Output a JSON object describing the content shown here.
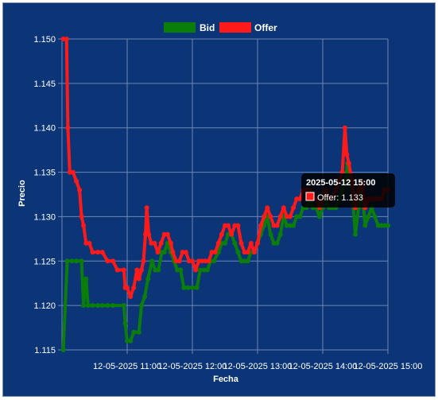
{
  "chart_data": {
    "type": "line",
    "xlabel": "Fecha",
    "ylabel": "Precio",
    "ylim": [
      1.115,
      1.15
    ],
    "y_ticks": [
      "1.115",
      "1.120",
      "1.125",
      "1.130",
      "1.135",
      "1.140",
      "1.145",
      "1.150"
    ],
    "x_tick_labels": [
      "12-05-2025 11:00",
      "12-05-2025 12:00",
      "12-05-2025 13:00",
      "12-05-2025 14:00",
      "12-05-2025 15:00"
    ],
    "x_ticks_hours": [
      11,
      12,
      13,
      14,
      15
    ],
    "x_range_hours": [
      10.0,
      15.0
    ],
    "grid": true,
    "legend_position": "top",
    "background_color": "#0b3576",
    "series": [
      {
        "name": "Bid",
        "color": "#0a7d0a",
        "points": [
          [
            10.02,
            1.115
          ],
          [
            10.08,
            1.125
          ],
          [
            10.15,
            1.125
          ],
          [
            10.22,
            1.125
          ],
          [
            10.3,
            1.125
          ],
          [
            10.33,
            1.12
          ],
          [
            10.37,
            1.123
          ],
          [
            10.4,
            1.12
          ],
          [
            10.47,
            1.12
          ],
          [
            10.55,
            1.12
          ],
          [
            10.62,
            1.12
          ],
          [
            10.7,
            1.12
          ],
          [
            10.78,
            1.12
          ],
          [
            10.95,
            1.12
          ],
          [
            10.97,
            1.118
          ],
          [
            11.0,
            1.116
          ],
          [
            11.05,
            1.116
          ],
          [
            11.1,
            1.117
          ],
          [
            11.18,
            1.117
          ],
          [
            11.22,
            1.12
          ],
          [
            11.27,
            1.121
          ],
          [
            11.32,
            1.123
          ],
          [
            11.38,
            1.125
          ],
          [
            11.43,
            1.124
          ],
          [
            11.48,
            1.124
          ],
          [
            11.53,
            1.126
          ],
          [
            11.57,
            1.126
          ],
          [
            11.62,
            1.127
          ],
          [
            11.67,
            1.126
          ],
          [
            11.72,
            1.125
          ],
          [
            11.77,
            1.124
          ],
          [
            11.82,
            1.124
          ],
          [
            11.87,
            1.122
          ],
          [
            11.93,
            1.122
          ],
          [
            12.0,
            1.122
          ],
          [
            12.07,
            1.122
          ],
          [
            12.12,
            1.124
          ],
          [
            12.18,
            1.124
          ],
          [
            12.23,
            1.124
          ],
          [
            12.28,
            1.125
          ],
          [
            12.33,
            1.125
          ],
          [
            12.4,
            1.126
          ],
          [
            12.45,
            1.127
          ],
          [
            12.5,
            1.127
          ],
          [
            12.55,
            1.128
          ],
          [
            12.6,
            1.128
          ],
          [
            12.65,
            1.127
          ],
          [
            12.7,
            1.126
          ],
          [
            12.75,
            1.125
          ],
          [
            12.8,
            1.125
          ],
          [
            12.85,
            1.125
          ],
          [
            12.9,
            1.126
          ],
          [
            12.95,
            1.126
          ],
          [
            13.0,
            1.127
          ],
          [
            13.05,
            1.128
          ],
          [
            13.1,
            1.129
          ],
          [
            13.15,
            1.13
          ],
          [
            13.2,
            1.128
          ],
          [
            13.25,
            1.127
          ],
          [
            13.3,
            1.127
          ],
          [
            13.35,
            1.128
          ],
          [
            13.4,
            1.13
          ],
          [
            13.45,
            1.129
          ],
          [
            13.5,
            1.129
          ],
          [
            13.55,
            1.129
          ],
          [
            13.6,
            1.13
          ],
          [
            13.65,
            1.13
          ],
          [
            13.7,
            1.131
          ],
          [
            13.75,
            1.131
          ],
          [
            13.8,
            1.132
          ],
          [
            13.85,
            1.131
          ],
          [
            13.9,
            1.131
          ],
          [
            13.95,
            1.13
          ],
          [
            14.0,
            1.131
          ],
          [
            14.05,
            1.132
          ],
          [
            14.1,
            1.131
          ],
          [
            14.15,
            1.131
          ],
          [
            14.2,
            1.131
          ],
          [
            14.25,
            1.132
          ],
          [
            14.3,
            1.133
          ],
          [
            14.35,
            1.134
          ],
          [
            14.38,
            1.136
          ],
          [
            14.4,
            1.135
          ],
          [
            14.45,
            1.133
          ],
          [
            14.5,
            1.128
          ],
          [
            14.55,
            1.131
          ],
          [
            14.6,
            1.133
          ],
          [
            14.65,
            1.129
          ],
          [
            14.7,
            1.13
          ],
          [
            14.75,
            1.131
          ],
          [
            14.8,
            1.13
          ],
          [
            14.85,
            1.129
          ],
          [
            14.9,
            1.129
          ],
          [
            14.95,
            1.129
          ],
          [
            15.0,
            1.129
          ]
        ]
      },
      {
        "name": "Offer",
        "color": "#ff1a1a",
        "points": [
          [
            10.02,
            1.15
          ],
          [
            10.07,
            1.15
          ],
          [
            10.09,
            1.14
          ],
          [
            10.12,
            1.135
          ],
          [
            10.17,
            1.135
          ],
          [
            10.22,
            1.134
          ],
          [
            10.27,
            1.133
          ],
          [
            10.3,
            1.13
          ],
          [
            10.33,
            1.129
          ],
          [
            10.37,
            1.127
          ],
          [
            10.42,
            1.127
          ],
          [
            10.47,
            1.126
          ],
          [
            10.55,
            1.126
          ],
          [
            10.62,
            1.126
          ],
          [
            10.7,
            1.125
          ],
          [
            10.78,
            1.125
          ],
          [
            10.85,
            1.124
          ],
          [
            10.95,
            1.124
          ],
          [
            10.97,
            1.122
          ],
          [
            11.0,
            1.122
          ],
          [
            11.05,
            1.121
          ],
          [
            11.1,
            1.122
          ],
          [
            11.15,
            1.124
          ],
          [
            11.18,
            1.123
          ],
          [
            11.22,
            1.124
          ],
          [
            11.25,
            1.125
          ],
          [
            11.28,
            1.128
          ],
          [
            11.3,
            1.131
          ],
          [
            11.33,
            1.128
          ],
          [
            11.37,
            1.127
          ],
          [
            11.42,
            1.127
          ],
          [
            11.47,
            1.126
          ],
          [
            11.52,
            1.127
          ],
          [
            11.57,
            1.128
          ],
          [
            11.62,
            1.128
          ],
          [
            11.67,
            1.127
          ],
          [
            11.7,
            1.126
          ],
          [
            11.75,
            1.125
          ],
          [
            11.8,
            1.125
          ],
          [
            11.85,
            1.126
          ],
          [
            11.9,
            1.126
          ],
          [
            11.95,
            1.125
          ],
          [
            12.0,
            1.125
          ],
          [
            12.05,
            1.124
          ],
          [
            12.1,
            1.125
          ],
          [
            12.15,
            1.125
          ],
          [
            12.2,
            1.125
          ],
          [
            12.25,
            1.125
          ],
          [
            12.3,
            1.126
          ],
          [
            12.35,
            1.126
          ],
          [
            12.4,
            1.127
          ],
          [
            12.45,
            1.128
          ],
          [
            12.5,
            1.129
          ],
          [
            12.55,
            1.129
          ],
          [
            12.6,
            1.128
          ],
          [
            12.65,
            1.129
          ],
          [
            12.7,
            1.129
          ],
          [
            12.75,
            1.127
          ],
          [
            12.8,
            1.126
          ],
          [
            12.85,
            1.126
          ],
          [
            12.9,
            1.127
          ],
          [
            12.95,
            1.126
          ],
          [
            13.0,
            1.127
          ],
          [
            13.05,
            1.129
          ],
          [
            13.1,
            1.13
          ],
          [
            13.15,
            1.131
          ],
          [
            13.2,
            1.13
          ],
          [
            13.25,
            1.129
          ],
          [
            13.3,
            1.129
          ],
          [
            13.35,
            1.13
          ],
          [
            13.4,
            1.131
          ],
          [
            13.45,
            1.13
          ],
          [
            13.5,
            1.13
          ],
          [
            13.55,
            1.131
          ],
          [
            13.6,
            1.132
          ],
          [
            13.65,
            1.132
          ],
          [
            13.7,
            1.133
          ],
          [
            13.75,
            1.133
          ],
          [
            13.8,
            1.133
          ],
          [
            13.85,
            1.132
          ],
          [
            13.9,
            1.132
          ],
          [
            13.95,
            1.131
          ],
          [
            14.0,
            1.132
          ],
          [
            14.05,
            1.133
          ],
          [
            14.1,
            1.132
          ],
          [
            14.15,
            1.132
          ],
          [
            14.2,
            1.133
          ],
          [
            14.25,
            1.134
          ],
          [
            14.3,
            1.135
          ],
          [
            14.34,
            1.14
          ],
          [
            14.37,
            1.137
          ],
          [
            14.4,
            1.136
          ],
          [
            14.45,
            1.134
          ],
          [
            14.5,
            1.131
          ],
          [
            14.55,
            1.133
          ],
          [
            14.6,
            1.134
          ],
          [
            14.65,
            1.131
          ],
          [
            14.7,
            1.132
          ],
          [
            14.75,
            1.132
          ],
          [
            14.8,
            1.132
          ],
          [
            14.85,
            1.132
          ],
          [
            14.9,
            1.132
          ],
          [
            14.95,
            1.133
          ],
          [
            15.0,
            1.133
          ]
        ]
      }
    ]
  },
  "tooltip": {
    "title": "2025-05-12 15:00",
    "series_name": "Offer",
    "value": "1.133",
    "body": "Offer: 1.133",
    "swatch_color": "#ff1a1a"
  }
}
